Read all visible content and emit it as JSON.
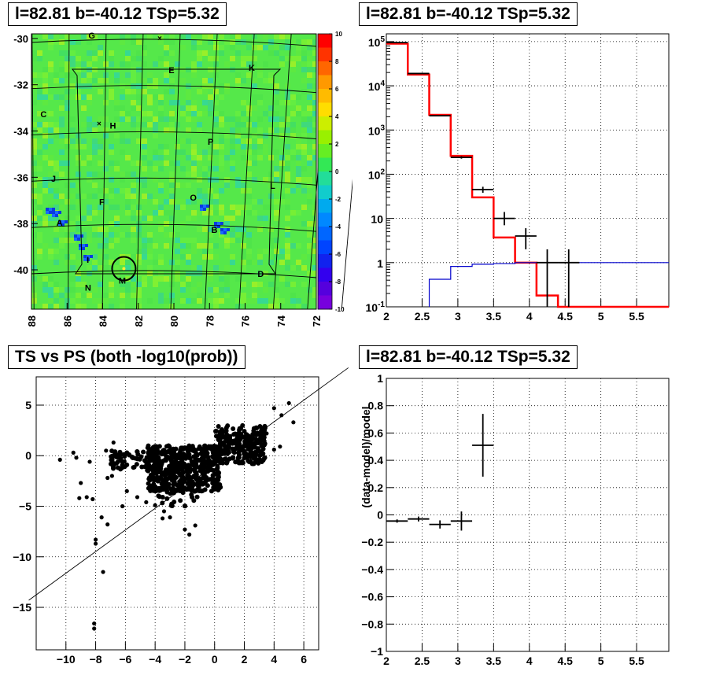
{
  "panels": {
    "top_left_title": "l=82.81 b=-40.12 TSp=5.32",
    "top_right_title": "l=82.81 b=-40.12 TSp=5.32",
    "bottom_left_title": "TS vs PS (both -log10(prob))",
    "bottom_right_title": "l=82.81 b=-40.12 TSp=5.32"
  },
  "chart_data": [
    {
      "type": "heatmap",
      "title": "l=82.81 b=-40.12 TSp=5.32",
      "x_ticks": [
        "88",
        "86",
        "84",
        "82",
        "80",
        "78",
        "76",
        "74",
        "72"
      ],
      "y_ticks": [
        "-30",
        "-32",
        "-34",
        "-36",
        "-38",
        "-40"
      ],
      "xlim": [
        88,
        72
      ],
      "ylim": [
        -41.7,
        -29.8
      ],
      "colorbar": {
        "range": [
          -10,
          10
        ],
        "ticks": [
          "10",
          "8",
          "6",
          "4",
          "2",
          "0",
          "-2",
          "-4",
          "-6",
          "-8",
          "-10"
        ]
      },
      "source_labels": [
        {
          "label": "G",
          "l": 84.8,
          "b": -30.0
        },
        {
          "label": "E",
          "l": 80.3,
          "b": -31.5
        },
        {
          "label": "K",
          "l": 75.8,
          "b": -31.4
        },
        {
          "label": "C",
          "l": 87.5,
          "b": -33.4
        },
        {
          "label": "H",
          "l": 83.6,
          "b": -33.9
        },
        {
          "label": "P",
          "l": 78.1,
          "b": -34.6
        },
        {
          "label": "J",
          "l": 86.9,
          "b": -36.2
        },
        {
          "label": "L",
          "l": 74.6,
          "b": -36.5
        },
        {
          "label": "O",
          "l": 79.1,
          "b": -37.0
        },
        {
          "label": "F",
          "l": 84.2,
          "b": -37.2
        },
        {
          "label": "A",
          "l": 86.6,
          "b": -38.1
        },
        {
          "label": "B",
          "l": 77.9,
          "b": -38.4
        },
        {
          "label": "I",
          "l": 84.9,
          "b": -39.7
        },
        {
          "label": "D",
          "l": 75.3,
          "b": -40.3
        },
        {
          "label": "M",
          "l": 83.1,
          "b": -40.6
        },
        {
          "label": "N",
          "l": 85.0,
          "b": -40.9
        }
      ],
      "crosses": [
        {
          "l": 80.8,
          "b": -30.1
        },
        {
          "l": 84.2,
          "b": -33.8
        }
      ],
      "circle": {
        "l": 82.81,
        "b": -39.95
      }
    },
    {
      "type": "line",
      "title": "l=82.81 b=-40.12 TSp=5.32",
      "log_y": true,
      "xlim": [
        2,
        5.95
      ],
      "ylim": [
        0.1,
        150000
      ],
      "x_ticks": [
        "2",
        "2.5",
        "3",
        "3.5",
        "4",
        "4.5",
        "5",
        "5.5"
      ],
      "y_ticks": [
        "10^-1",
        "1",
        "10",
        "10^2",
        "10^3",
        "10^4",
        "10^5"
      ],
      "series": [
        {
          "color": "#ff0000",
          "edges": [
            2.0,
            2.3,
            2.6,
            2.9,
            3.2,
            3.5,
            3.8,
            4.1,
            4.4,
            4.7,
            5.0,
            5.95
          ],
          "values": [
            90000,
            18000,
            2200,
            260,
            30,
            3.7,
            1.0,
            0.18,
            0.1,
            0.1,
            0.1
          ]
        },
        {
          "color": "#0000cc",
          "edges": [
            2.6,
            2.9,
            3.2,
            3.5,
            3.8,
            5.95
          ],
          "values": [
            0.42,
            0.82,
            0.92,
            0.95,
            1.0
          ]
        },
        {
          "color": "#000000",
          "points": [
            {
              "x": 2.15,
              "y": 95000,
              "xerr": 0.15,
              "ylo": 94000,
              "yhi": 96000
            },
            {
              "x": 2.45,
              "y": 19000,
              "xerr": 0.15,
              "ylo": 18800,
              "yhi": 19200
            },
            {
              "x": 2.75,
              "y": 2100,
              "xerr": 0.15,
              "ylo": 2050,
              "yhi": 2150
            },
            {
              "x": 3.05,
              "y": 240,
              "xerr": 0.15,
              "ylo": 225,
              "yhi": 255
            },
            {
              "x": 3.35,
              "y": 45,
              "xerr": 0.15,
              "ylo": 38,
              "yhi": 52
            },
            {
              "x": 3.65,
              "y": 10,
              "xerr": 0.15,
              "ylo": 7,
              "yhi": 14
            },
            {
              "x": 3.95,
              "y": 4,
              "xerr": 0.15,
              "ylo": 2,
              "yhi": 6
            },
            {
              "x": 4.25,
              "y": 1,
              "xerr": 0.15,
              "ylo": 0.1,
              "yhi": 2
            },
            {
              "x": 4.55,
              "y": 1,
              "xerr": 0.15,
              "ylo": 0.1,
              "yhi": 2
            }
          ]
        }
      ]
    },
    {
      "type": "scatter",
      "title": "TS vs PS (both -log10(prob))",
      "xlim": [
        -12,
        7
      ],
      "ylim": [
        -19.2,
        7.8
      ],
      "x_ticks": [
        "-10",
        "-8",
        "-6",
        "-4",
        "-2",
        "0",
        "2",
        "4",
        "6"
      ],
      "y_ticks": [
        "5",
        "0",
        "-5",
        "-10",
        "-15"
      ],
      "line": {
        "x1": -12.5,
        "y1": -14.3,
        "x2": 9.0,
        "y2": 8.7
      },
      "points": [
        [
          -8.1,
          -16.6
        ],
        [
          -8.1,
          -17.1
        ],
        [
          -7.5,
          -11.5
        ],
        [
          -8.0,
          -8.7
        ],
        [
          -8.0,
          -8.3
        ],
        [
          -7.6,
          -6.1
        ],
        [
          -7.2,
          -6.8
        ],
        [
          -10.4,
          -0.4
        ],
        [
          -9.5,
          0.3
        ],
        [
          -9.3,
          -0.2
        ],
        [
          -8.4,
          -0.6
        ],
        [
          -9.1,
          -4.2
        ],
        [
          -9.0,
          -2.7
        ],
        [
          -8.6,
          -4.1
        ],
        [
          -8.2,
          -4.3
        ],
        [
          -7.2,
          -2.2
        ],
        [
          -6.9,
          -2.0
        ],
        [
          -5.9,
          -3.5
        ],
        [
          -6.2,
          -5.0
        ],
        [
          -5.2,
          -4.1
        ],
        [
          -4.6,
          -4.6
        ],
        [
          -4.0,
          -4.9
        ],
        [
          -3.4,
          -5.5
        ],
        [
          -3.0,
          -6.1
        ],
        [
          -1.7,
          -7.8
        ],
        [
          -2.0,
          -7.3
        ],
        [
          -3.5,
          -6.2
        ],
        [
          -1.3,
          -6.9
        ],
        [
          -6.8,
          1.3
        ],
        [
          -6.5,
          -0.6
        ],
        [
          -7.3,
          0.5
        ],
        [
          -6.3,
          0.1
        ],
        [
          4.0,
          4.7
        ],
        [
          4.5,
          4.0
        ],
        [
          5.0,
          5.2
        ],
        [
          5.3,
          3.3
        ],
        [
          4.4,
          0.9
        ],
        [
          4.0,
          0.6
        ],
        [
          3.5,
          2.2
        ],
        [
          3.2,
          1.8
        ],
        [
          2.8,
          2.8
        ]
      ],
      "cluster_rect": {
        "xmin": -4.5,
        "xmax": 0.4,
        "ymin": -3.5,
        "ymax": 1.0
      },
      "cluster_rect_b": {
        "xmin": 0.0,
        "xmax": 3.4,
        "ymin": -0.8,
        "ymax": 3.0
      }
    },
    {
      "type": "line",
      "title": "l=82.81 b=-40.12 TSp=5.32",
      "ylabel": "(data-model)/model",
      "xlim": [
        2,
        5.95
      ],
      "ylim": [
        -1,
        1
      ],
      "x_ticks": [
        "2",
        "2.5",
        "3",
        "3.5",
        "4",
        "4.5",
        "5",
        "5.5"
      ],
      "y_ticks": [
        "1",
        "0.8",
        "0.6",
        "0.4",
        "0.2",
        "0",
        "-0.2",
        "-0.4",
        "-0.6",
        "-0.8",
        "-1"
      ],
      "points": [
        {
          "x": 2.15,
          "y": -0.045,
          "xerr": 0.15,
          "err": 0.012
        },
        {
          "x": 2.45,
          "y": -0.03,
          "xerr": 0.15,
          "err": 0.018
        },
        {
          "x": 2.75,
          "y": -0.07,
          "xerr": 0.15,
          "err": 0.03
        },
        {
          "x": 3.05,
          "y": -0.045,
          "xerr": 0.15,
          "err": 0.07
        },
        {
          "x": 3.35,
          "y": 0.51,
          "xerr": 0.15,
          "err": 0.23
        }
      ]
    }
  ]
}
